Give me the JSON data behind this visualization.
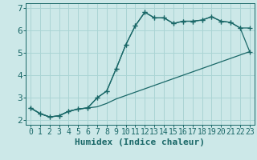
{
  "xlabel": "Humidex (Indice chaleur)",
  "background_color": "#cce8e8",
  "grid_color": "#aad4d4",
  "line_color": "#1a6868",
  "xlim": [
    -0.5,
    23.5
  ],
  "ylim": [
    1.8,
    7.2
  ],
  "yticks": [
    2,
    3,
    4,
    5,
    6,
    7
  ],
  "xticks": [
    0,
    1,
    2,
    3,
    4,
    5,
    6,
    7,
    8,
    9,
    10,
    11,
    12,
    13,
    14,
    15,
    16,
    17,
    18,
    19,
    20,
    21,
    22,
    23
  ],
  "series": [
    {
      "x": [
        0,
        1,
        2,
        3,
        4,
        5,
        6,
        7,
        8,
        9,
        10,
        11,
        12,
        13,
        14,
        15,
        16,
        17,
        18,
        19,
        20,
        21,
        22,
        23
      ],
      "y": [
        2.55,
        2.3,
        2.15,
        2.2,
        2.4,
        2.5,
        2.55,
        3.0,
        3.3,
        4.3,
        5.35,
        6.2,
        6.8,
        6.55,
        6.55,
        6.3,
        6.4,
        6.4,
        6.45,
        6.6,
        6.4,
        6.35,
        6.1,
        5.05
      ],
      "marker": "+",
      "markersize": 4
    },
    {
      "x": [
        0,
        1,
        2,
        3,
        4,
        5,
        6,
        7,
        8,
        9,
        10,
        11,
        12,
        13,
        14,
        15,
        16,
        17,
        18,
        19,
        20,
        21,
        22,
        23
      ],
      "y": [
        2.55,
        2.3,
        2.15,
        2.2,
        2.4,
        2.5,
        2.55,
        3.0,
        3.3,
        4.3,
        5.35,
        6.2,
        6.8,
        6.55,
        6.55,
        6.3,
        6.4,
        6.4,
        6.45,
        6.6,
        6.4,
        6.35,
        6.1,
        6.1
      ],
      "marker": "+",
      "markersize": 4
    },
    {
      "x": [
        0,
        1,
        2,
        3,
        4,
        5,
        6,
        7,
        8,
        9,
        10,
        23
      ],
      "y": [
        2.55,
        2.3,
        2.15,
        2.2,
        2.4,
        2.5,
        2.55,
        2.6,
        2.75,
        2.95,
        3.1,
        5.05
      ],
      "marker": null,
      "markersize": 0
    }
  ],
  "line_width": 0.9,
  "font_size_xlabel": 8,
  "font_size_ticks": 7
}
